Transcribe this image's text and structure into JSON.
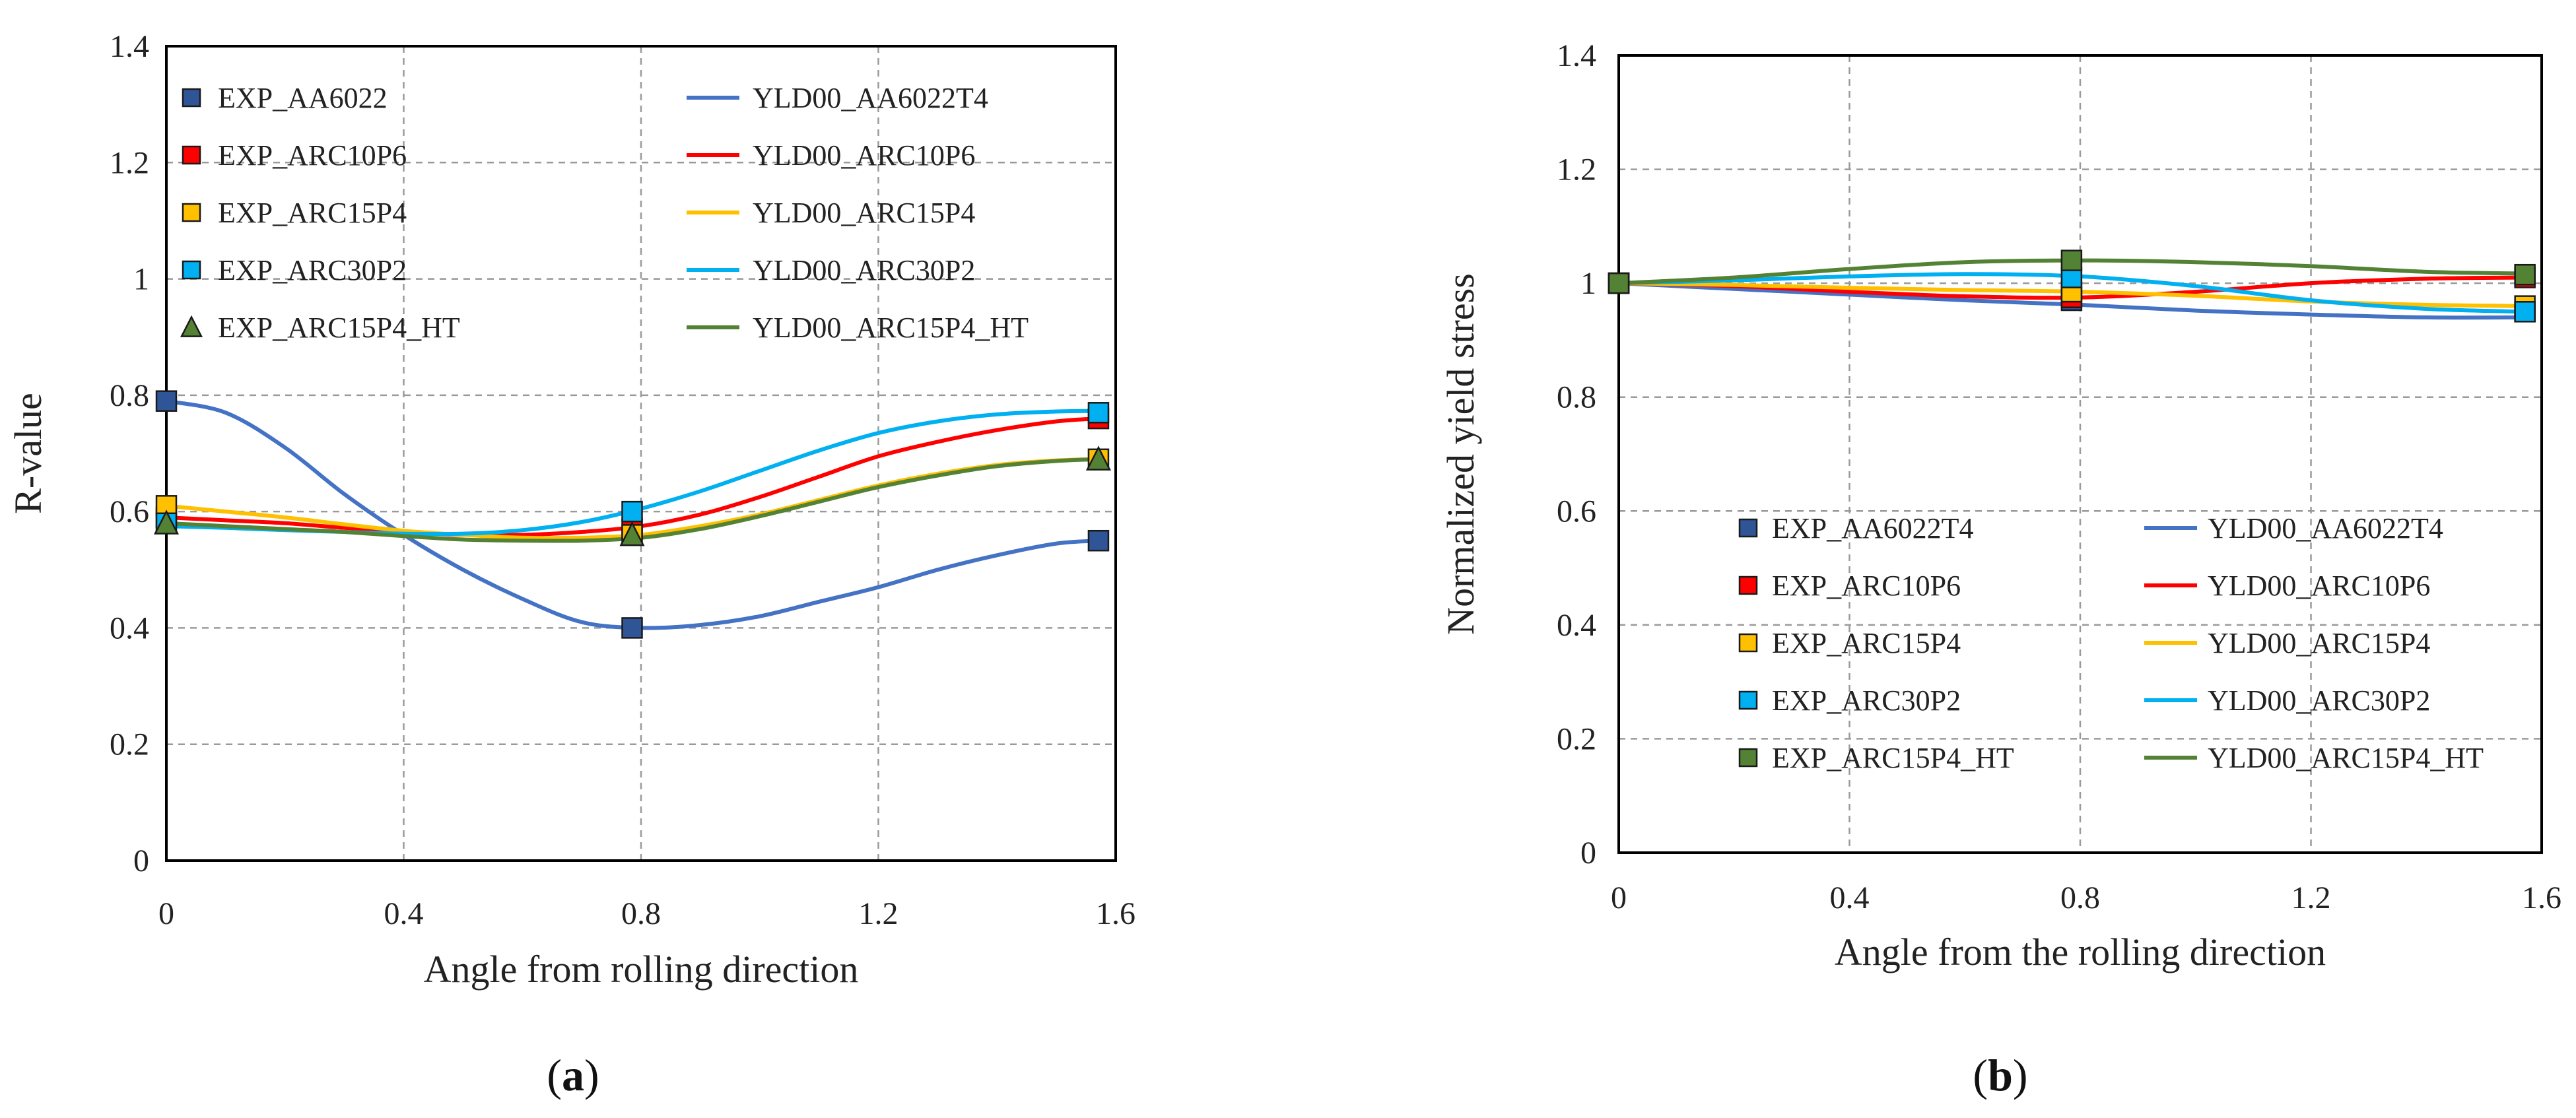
{
  "chart_data": [
    {
      "type": "line",
      "panel_label_open": "(",
      "panel_label": "a",
      "panel_label_close": ")",
      "title": "",
      "xlabel": "Angle from rolling direction",
      "ylabel": "R-value",
      "xlim": [
        0,
        1.6
      ],
      "ylim": [
        0,
        1.4
      ],
      "xticks": [
        "0",
        "0.4",
        "0.8",
        "1.2",
        "1.6"
      ],
      "xtick_values": [
        0,
        0.4,
        0.8,
        1.2,
        1.6
      ],
      "yticks": [
        "0",
        "0.2",
        "0.4",
        "0.6",
        "0.8",
        "1",
        "1.2",
        "1.4"
      ],
      "ytick_values": [
        0,
        0.2,
        0.4,
        0.6,
        0.8,
        1.0,
        1.2,
        1.4
      ],
      "grid": true,
      "legend_position": "top",
      "exp_series": [
        {
          "name": "EXP_AA6022",
          "color": "#2f5597",
          "marker": "square",
          "x": [
            0,
            0.785,
            1.571
          ],
          "y": [
            0.79,
            0.4,
            0.55
          ]
        },
        {
          "name": "EXP_ARC10P6",
          "color": "#ff0000",
          "marker": "square",
          "x": [
            0,
            0.785,
            1.571
          ],
          "y": [
            0.59,
            0.57,
            0.76
          ]
        },
        {
          "name": "EXP_ARC15P4",
          "color": "#ffc000",
          "marker": "square",
          "x": [
            0,
            0.785,
            1.571
          ],
          "y": [
            0.61,
            0.56,
            0.69
          ]
        },
        {
          "name": "EXP_ARC30P2",
          "color": "#00b0f0",
          "marker": "square",
          "x": [
            0,
            0.785,
            1.571
          ],
          "y": [
            0.58,
            0.6,
            0.77
          ]
        },
        {
          "name": "EXP_ARC15P4_HT",
          "color": "#548235",
          "marker": "triangle",
          "x": [
            0,
            0.785,
            1.571
          ],
          "y": [
            0.58,
            0.56,
            0.69
          ]
        }
      ],
      "model_series": [
        {
          "name": "YLD00_AA6022T4",
          "color": "#4472c4",
          "x": [
            0,
            0.1,
            0.2,
            0.3,
            0.4,
            0.5,
            0.6,
            0.7,
            0.8,
            0.9,
            1.0,
            1.1,
            1.2,
            1.3,
            1.4,
            1.5,
            1.571
          ],
          "y": [
            0.79,
            0.77,
            0.71,
            0.63,
            0.56,
            0.5,
            0.45,
            0.41,
            0.4,
            0.405,
            0.42,
            0.445,
            0.47,
            0.5,
            0.525,
            0.545,
            0.55
          ]
        },
        {
          "name": "YLD00_ARC10P6",
          "color": "#ff0000",
          "x": [
            0,
            0.1,
            0.2,
            0.3,
            0.4,
            0.5,
            0.6,
            0.7,
            0.8,
            0.9,
            1.0,
            1.1,
            1.2,
            1.3,
            1.4,
            1.5,
            1.571
          ],
          "y": [
            0.59,
            0.585,
            0.58,
            0.572,
            0.565,
            0.56,
            0.56,
            0.565,
            0.575,
            0.595,
            0.625,
            0.66,
            0.695,
            0.72,
            0.74,
            0.755,
            0.76
          ]
        },
        {
          "name": "YLD00_ARC15P4",
          "color": "#ffc000",
          "x": [
            0,
            0.1,
            0.2,
            0.3,
            0.4,
            0.5,
            0.6,
            0.7,
            0.8,
            0.9,
            1.0,
            1.1,
            1.2,
            1.3,
            1.4,
            1.5,
            1.571
          ],
          "y": [
            0.61,
            0.6,
            0.59,
            0.578,
            0.567,
            0.56,
            0.555,
            0.555,
            0.56,
            0.575,
            0.595,
            0.62,
            0.645,
            0.665,
            0.68,
            0.688,
            0.69
          ]
        },
        {
          "name": "YLD00_ARC30P2",
          "color": "#00b0f0",
          "x": [
            0,
            0.1,
            0.2,
            0.3,
            0.4,
            0.5,
            0.6,
            0.7,
            0.8,
            0.9,
            1.0,
            1.1,
            1.2,
            1.3,
            1.4,
            1.5,
            1.571
          ],
          "y": [
            0.575,
            0.572,
            0.568,
            0.565,
            0.562,
            0.562,
            0.568,
            0.582,
            0.605,
            0.635,
            0.67,
            0.705,
            0.735,
            0.755,
            0.767,
            0.772,
            0.773
          ]
        },
        {
          "name": "YLD00_ARC15P4_HT",
          "color": "#548235",
          "x": [
            0,
            0.1,
            0.2,
            0.3,
            0.4,
            0.5,
            0.6,
            0.7,
            0.8,
            0.9,
            1.0,
            1.1,
            1.2,
            1.3,
            1.4,
            1.5,
            1.571
          ],
          "y": [
            0.58,
            0.575,
            0.57,
            0.565,
            0.558,
            0.552,
            0.55,
            0.55,
            0.555,
            0.57,
            0.592,
            0.617,
            0.642,
            0.662,
            0.678,
            0.687,
            0.69
          ]
        }
      ]
    },
    {
      "type": "line",
      "panel_label_open": "(",
      "panel_label": "b",
      "panel_label_close": ")",
      "title": "",
      "xlabel": "Angle from the rolling direction",
      "ylabel": "Normalized yield stress",
      "xlim": [
        0,
        1.6
      ],
      "ylim": [
        0,
        1.4
      ],
      "xticks": [
        "0",
        "0.4",
        "0.8",
        "1.2",
        "1.6"
      ],
      "xtick_values": [
        0,
        0.4,
        0.8,
        1.2,
        1.6
      ],
      "yticks": [
        "0",
        "0.2",
        "0.4",
        "0.6",
        "0.8",
        "1",
        "1.2",
        "1.4"
      ],
      "ytick_values": [
        0,
        0.2,
        0.4,
        0.6,
        0.8,
        1.0,
        1.2,
        1.4
      ],
      "grid": true,
      "legend_position": "bottom",
      "exp_series": [
        {
          "name": "EXP_AA6022T4",
          "color": "#2f5597",
          "marker": "square",
          "x": [
            0,
            0.785,
            1.571
          ],
          "y": [
            1.0,
            0.97,
            0.95
          ]
        },
        {
          "name": "EXP_ARC10P6",
          "color": "#ff0000",
          "marker": "square",
          "x": [
            0,
            0.785,
            1.571
          ],
          "y": [
            1.0,
            0.975,
            1.01
          ]
        },
        {
          "name": "EXP_ARC15P4",
          "color": "#ffc000",
          "marker": "square",
          "x": [
            0,
            0.785,
            1.571
          ],
          "y": [
            1.0,
            0.985,
            0.96
          ]
        },
        {
          "name": "EXP_ARC30P2",
          "color": "#00b0f0",
          "marker": "square",
          "x": [
            0,
            0.785,
            1.571
          ],
          "y": [
            1.0,
            1.01,
            0.95
          ]
        },
        {
          "name": "EXP_ARC15P4_HT",
          "color": "#548235",
          "marker": "square",
          "x": [
            0,
            0.785,
            1.571
          ],
          "y": [
            1.0,
            1.04,
            1.015
          ]
        }
      ],
      "model_series": [
        {
          "name": "YLD00_AA6022T4",
          "color": "#4472c4",
          "x": [
            0,
            0.2,
            0.4,
            0.6,
            0.8,
            1.0,
            1.2,
            1.4,
            1.571
          ],
          "y": [
            1.0,
            0.99,
            0.98,
            0.97,
            0.962,
            0.952,
            0.945,
            0.94,
            0.94
          ]
        },
        {
          "name": "YLD00_ARC10P6",
          "color": "#ff0000",
          "x": [
            0,
            0.2,
            0.4,
            0.6,
            0.8,
            1.0,
            1.2,
            1.4,
            1.571
          ],
          "y": [
            1.0,
            0.995,
            0.985,
            0.977,
            0.975,
            0.985,
            1.0,
            1.008,
            1.01
          ]
        },
        {
          "name": "YLD00_ARC15P4",
          "color": "#ffc000",
          "x": [
            0,
            0.2,
            0.4,
            0.6,
            0.8,
            1.0,
            1.2,
            1.4,
            1.571
          ],
          "y": [
            1.0,
            0.997,
            0.992,
            0.988,
            0.985,
            0.978,
            0.968,
            0.962,
            0.96
          ]
        },
        {
          "name": "YLD00_ARC30P2",
          "color": "#00b0f0",
          "x": [
            0,
            0.2,
            0.4,
            0.6,
            0.8,
            1.0,
            1.2,
            1.4,
            1.571
          ],
          "y": [
            1.0,
            1.005,
            1.012,
            1.016,
            1.012,
            0.995,
            0.97,
            0.955,
            0.95
          ]
        },
        {
          "name": "YLD00_ARC15P4_HT",
          "color": "#548235",
          "x": [
            0,
            0.2,
            0.4,
            0.6,
            0.8,
            1.0,
            1.2,
            1.4,
            1.571
          ],
          "y": [
            1.0,
            1.01,
            1.025,
            1.037,
            1.04,
            1.037,
            1.03,
            1.02,
            1.017
          ]
        }
      ]
    }
  ]
}
